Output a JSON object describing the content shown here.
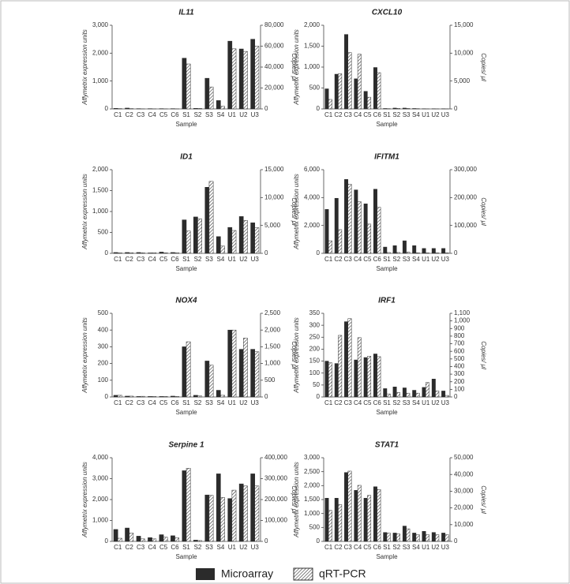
{
  "chart_data": [
    {
      "type": "bar",
      "title": "IL11",
      "x_label": "Sample",
      "y_label": "Affymetrix expression units",
      "y2_label": "Copies/ μl",
      "categories": [
        "C1",
        "C2",
        "C3",
        "C4",
        "C5",
        "C6",
        "S1",
        "S2",
        "S3",
        "S4",
        "U1",
        "U2",
        "U3"
      ],
      "series": [
        {
          "name": "Microarray",
          "color": "#2b2b2b",
          "values": [
            20,
            30,
            10,
            10,
            10,
            10,
            1820,
            20,
            1100,
            300,
            2430,
            2150,
            2500
          ]
        },
        {
          "name": "qRT-PCR",
          "color": "#333333",
          "pattern": "hatch",
          "axis": "y2",
          "values": [
            300,
            300,
            100,
            100,
            100,
            100,
            43000,
            500,
            21000,
            2500,
            57500,
            55000,
            60000
          ]
        }
      ],
      "ylim": [
        0,
        3000
      ],
      "yticks": [
        0,
        {
          "value": 1000,
          "label": "1,000"
        },
        {
          "value": 2000,
          "label": "2,000"
        },
        {
          "value": 3000,
          "label": "3,000"
        }
      ],
      "y2lim": [
        0,
        80000
      ],
      "y2ticks": [
        0,
        {
          "value": 20000,
          "label": "20,000"
        },
        {
          "value": 40000,
          "label": "40,000"
        },
        {
          "value": 60000,
          "label": "60,000"
        },
        {
          "value": 80000,
          "label": "80,000"
        }
      ]
    },
    {
      "type": "bar",
      "title": "CXCL10",
      "x_label": "Sample",
      "y_label": "Affymetrix expression units",
      "y2_label": "Copies/ μl",
      "categories": [
        "C1",
        "C2",
        "C3",
        "C4",
        "C5",
        "C6",
        "S1",
        "S2",
        "S3",
        "S4",
        "U1",
        "U2",
        "U3"
      ],
      "series": [
        {
          "name": "Microarray",
          "color": "#2b2b2b",
          "values": [
            480,
            830,
            1780,
            720,
            420,
            990,
            10,
            20,
            20,
            10,
            5,
            5,
            5
          ]
        },
        {
          "name": "qRT-PCR",
          "color": "#333333",
          "pattern": "hatch",
          "axis": "y2",
          "values": [
            1700,
            6300,
            10100,
            9800,
            2100,
            6500,
            50,
            100,
            100,
            50,
            20,
            20,
            20
          ]
        }
      ],
      "ylim": [
        0,
        2000
      ],
      "yticks": [
        0,
        500,
        {
          "value": 1000,
          "label": "1,000"
        },
        {
          "value": 1500,
          "label": "1,500"
        },
        {
          "value": 2000,
          "label": "2,000"
        }
      ],
      "y2lim": [
        0,
        15000
      ],
      "y2ticks": [
        0,
        {
          "value": 5000,
          "label": "5,000"
        },
        {
          "value": 10000,
          "label": "10,000"
        },
        {
          "value": 15000,
          "label": "15,000"
        }
      ]
    },
    {
      "type": "bar",
      "title": "ID1",
      "x_label": "Sample",
      "y_label": "Affymetrix expression units",
      "y2_label": "Copies/ μl",
      "categories": [
        "C1",
        "C2",
        "C3",
        "C4",
        "C5",
        "C6",
        "S1",
        "S2",
        "S3",
        "S4",
        "U1",
        "U2",
        "U3"
      ],
      "series": [
        {
          "name": "Microarray",
          "color": "#2b2b2b",
          "values": [
            20,
            20,
            20,
            10,
            30,
            20,
            800,
            870,
            1580,
            400,
            620,
            880,
            730
          ]
        },
        {
          "name": "qRT-PCR",
          "color": "#333333",
          "pattern": "hatch",
          "axis": "y2",
          "values": [
            100,
            100,
            100,
            100,
            100,
            100,
            4000,
            6200,
            12900,
            1300,
            4100,
            5900,
            4600
          ]
        }
      ],
      "ylim": [
        0,
        2000
      ],
      "yticks": [
        0,
        500,
        {
          "value": 1000,
          "label": "1,000"
        },
        {
          "value": 1500,
          "label": "1,500"
        },
        {
          "value": 2000,
          "label": "2,000"
        }
      ],
      "y2lim": [
        0,
        15000
      ],
      "y2ticks": [
        0,
        {
          "value": 5000,
          "label": "5,000"
        },
        {
          "value": 10000,
          "label": "10,000"
        },
        {
          "value": 15000,
          "label": "15,000"
        }
      ]
    },
    {
      "type": "bar",
      "title": "IFITM1",
      "x_label": "Sample",
      "y_label": "Affymetrix expression units",
      "y2_label": "Copies/ μl",
      "categories": [
        "C1",
        "C2",
        "C3",
        "C4",
        "C5",
        "C6",
        "S1",
        "S2",
        "S3",
        "S4",
        "U1",
        "U2",
        "U3"
      ],
      "series": [
        {
          "name": "Microarray",
          "color": "#2b2b2b",
          "values": [
            3150,
            3950,
            5300,
            4550,
            3550,
            4600,
            450,
            550,
            900,
            550,
            350,
            350,
            350
          ]
        },
        {
          "name": "qRT-PCR",
          "color": "#333333",
          "pattern": "hatch",
          "axis": "y2",
          "values": [
            45000,
            85000,
            248000,
            185000,
            105000,
            165000,
            3000,
            3000,
            5000,
            2000,
            1500,
            1500,
            1500
          ]
        }
      ],
      "ylim": [
        0,
        6000
      ],
      "yticks": [
        0,
        {
          "value": 2000,
          "label": "2,000"
        },
        {
          "value": 4000,
          "label": "4,000"
        },
        {
          "value": 6000,
          "label": "6,000"
        }
      ],
      "y2lim": [
        0,
        300000
      ],
      "y2ticks": [
        0,
        {
          "value": 100000,
          "label": "100,000"
        },
        {
          "value": 200000,
          "label": "200,000"
        },
        {
          "value": 300000,
          "label": "300,000"
        }
      ]
    },
    {
      "type": "bar",
      "title": "NOX4",
      "x_label": "Sample",
      "y_label": "Affymetrix expression units",
      "y2_label": "Copies/ μl",
      "categories": [
        "C1",
        "C2",
        "C3",
        "C4",
        "C5",
        "C6",
        "S1",
        "S2",
        "S3",
        "S4",
        "U1",
        "U2",
        "U3"
      ],
      "series": [
        {
          "name": "Microarray",
          "color": "#2b2b2b",
          "values": [
            10,
            5,
            3,
            3,
            3,
            5,
            300,
            10,
            215,
            40,
            400,
            285,
            285
          ]
        },
        {
          "name": "qRT-PCR",
          "color": "#333333",
          "pattern": "hatch",
          "axis": "y2",
          "values": [
            50,
            25,
            20,
            15,
            15,
            15,
            1650,
            30,
            950,
            50,
            2000,
            1760,
            1350
          ]
        }
      ],
      "ylim": [
        0,
        500
      ],
      "yticks": [
        0,
        100,
        200,
        300,
        400,
        500
      ],
      "y2lim": [
        0,
        2500
      ],
      "y2ticks": [
        0,
        500,
        {
          "value": 1000,
          "label": "1,000"
        },
        {
          "value": 1500,
          "label": "1,500"
        },
        {
          "value": 2000,
          "label": "2,000"
        },
        {
          "value": 2500,
          "label": "2,500"
        }
      ]
    },
    {
      "type": "bar",
      "title": "IRF1",
      "x_label": "Sample",
      "y_label": "Affymetrix expression units",
      "y2_label": "Copies/ μl",
      "categories": [
        "C1",
        "C2",
        "C3",
        "C4",
        "C5",
        "C6",
        "S1",
        "S2",
        "S3",
        "S4",
        "U1",
        "U2",
        "U3"
      ],
      "series": [
        {
          "name": "Microarray",
          "color": "#2b2b2b",
          "values": [
            150,
            140,
            315,
            155,
            165,
            180,
            35,
            42,
            38,
            28,
            40,
            75,
            25
          ]
        },
        {
          "name": "qRT-PCR",
          "color": "#333333",
          "pattern": "hatch",
          "axis": "y2",
          "values": [
            450,
            810,
            1030,
            780,
            535,
            530,
            40,
            60,
            50,
            50,
            190,
            80,
            20
          ]
        }
      ],
      "ylim": [
        0,
        350
      ],
      "yticks": [
        0,
        50,
        100,
        150,
        200,
        250,
        300,
        350
      ],
      "y2lim": [
        0,
        1100
      ],
      "y2ticks": [
        0,
        100,
        200,
        300,
        400,
        500,
        600,
        700,
        800,
        900,
        {
          "value": 1000,
          "label": "1,000"
        },
        {
          "value": 1100,
          "label": "1,100"
        }
      ]
    },
    {
      "type": "bar",
      "title": "Serpine 1",
      "x_label": "Sample",
      "y_label": "Affymetrix expression units",
      "y2_label": "Copies/ μl",
      "categories": [
        "C1",
        "C2",
        "C3",
        "C4",
        "C5",
        "C6",
        "S1",
        "S2",
        "S3",
        "S4",
        "U1",
        "U2",
        "U3"
      ],
      "series": [
        {
          "name": "Microarray",
          "color": "#2b2b2b",
          "values": [
            570,
            640,
            250,
            180,
            320,
            270,
            3380,
            60,
            2220,
            3230,
            2050,
            2750,
            3230
          ]
        },
        {
          "name": "qRT-PCR",
          "color": "#333333",
          "pattern": "hatch",
          "axis": "y2",
          "values": [
            15000,
            40000,
            12000,
            12000,
            20000,
            17000,
            350000,
            4000,
            220000,
            210000,
            245000,
            265000,
            265000
          ]
        }
      ],
      "ylim": [
        0,
        4000
      ],
      "yticks": [
        0,
        {
          "value": 1000,
          "label": "1,000"
        },
        {
          "value": 2000,
          "label": "2,000"
        },
        {
          "value": 3000,
          "label": "3,000"
        },
        {
          "value": 4000,
          "label": "4,000"
        }
      ],
      "y2lim": [
        0,
        400000
      ],
      "y2ticks": [
        0,
        {
          "value": 100000,
          "label": "100,000"
        },
        {
          "value": 200000,
          "label": "200,000"
        },
        {
          "value": 300000,
          "label": "300,000"
        },
        {
          "value": 400000,
          "label": "400,000"
        }
      ]
    },
    {
      "type": "bar",
      "title": "STAT1",
      "x_label": "Sample",
      "y_label": "Affymetrix expression units",
      "y2_label": "Copies/ μl",
      "categories": [
        "C1",
        "C2",
        "C3",
        "C4",
        "C5",
        "C6",
        "S1",
        "S2",
        "S3",
        "S4",
        "U1",
        "U2",
        "U3"
      ],
      "series": [
        {
          "name": "Microarray",
          "color": "#2b2b2b",
          "values": [
            1550,
            1550,
            2470,
            1830,
            1550,
            1960,
            320,
            300,
            550,
            300,
            360,
            320,
            300
          ]
        },
        {
          "name": "qRT-PCR",
          "color": "#333333",
          "pattern": "hatch",
          "axis": "y2",
          "values": [
            18500,
            22000,
            42000,
            33500,
            27500,
            31000,
            5000,
            4500,
            7500,
            4000,
            4000,
            4000,
            4000
          ]
        }
      ],
      "ylim": [
        0,
        3000
      ],
      "yticks": [
        0,
        500,
        {
          "value": 1000,
          "label": "1,000"
        },
        {
          "value": 1500,
          "label": "1,500"
        },
        {
          "value": 2000,
          "label": "2,000"
        },
        {
          "value": 2500,
          "label": "2,500"
        },
        {
          "value": 3000,
          "label": "3,000"
        }
      ],
      "y2lim": [
        0,
        50000
      ],
      "y2ticks": [
        0,
        {
          "value": 10000,
          "label": "10,000"
        },
        {
          "value": 20000,
          "label": "20,000"
        },
        {
          "value": 30000,
          "label": "30,000"
        },
        {
          "value": 40000,
          "label": "40,000"
        },
        {
          "value": 50000,
          "label": "50,000"
        }
      ]
    }
  ]
}
